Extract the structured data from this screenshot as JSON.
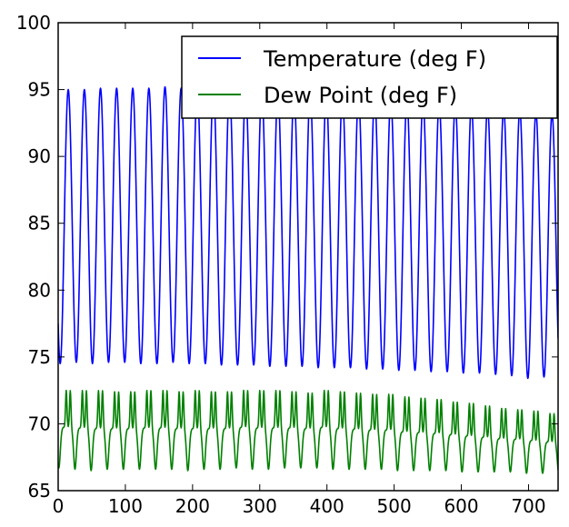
{
  "chart_data": {
    "type": "line",
    "title": "",
    "xlabel": "",
    "ylabel": "",
    "xlim": [
      0,
      744
    ],
    "ylim": [
      65,
      100
    ],
    "xticks": [
      0,
      100,
      200,
      300,
      400,
      500,
      600,
      700
    ],
    "yticks": [
      65,
      70,
      75,
      80,
      85,
      90,
      95,
      100
    ],
    "grid": false,
    "legend_position": "top-right",
    "period_hours": 24,
    "series": [
      {
        "name": "Temperature (deg F)",
        "color": "#0000ff",
        "daily_peaks": [
          95.0,
          95.0,
          95.1,
          95.1,
          95.1,
          95.1,
          95.2,
          95.1,
          95.0,
          95.0,
          95.0,
          94.9,
          94.9,
          94.8,
          94.7,
          94.7,
          94.6,
          94.5,
          94.5,
          94.4,
          94.3,
          94.2,
          94.1,
          94.0,
          93.9,
          93.8,
          93.7,
          93.6,
          93.5,
          93.3,
          93.2
        ],
        "daily_lows": [
          74.5,
          74.6,
          74.5,
          74.6,
          74.6,
          74.5,
          74.5,
          74.6,
          74.5,
          74.5,
          74.4,
          74.4,
          74.4,
          74.3,
          74.3,
          74.3,
          74.2,
          74.2,
          74.2,
          74.1,
          74.1,
          74.0,
          74.0,
          73.9,
          73.9,
          73.8,
          73.8,
          73.7,
          73.6,
          73.4,
          73.5
        ]
      },
      {
        "name": "Dew Point (deg F)",
        "color": "#008000",
        "daily_peaks": [
          72.8,
          72.8,
          72.8,
          72.7,
          72.7,
          72.8,
          72.8,
          72.7,
          72.8,
          72.7,
          72.7,
          72.8,
          72.8,
          72.8,
          72.7,
          72.6,
          72.8,
          72.7,
          72.6,
          72.5,
          72.5,
          72.3,
          72.2,
          72.1,
          71.9,
          71.8,
          71.6,
          71.4,
          71.3,
          71.2,
          71.0
        ],
        "daily_lows": [
          66.7,
          66.6,
          66.5,
          66.6,
          66.6,
          66.6,
          66.6,
          66.6,
          66.5,
          66.6,
          66.6,
          66.7,
          66.6,
          66.6,
          66.7,
          66.7,
          66.7,
          66.6,
          66.6,
          66.6,
          66.6,
          66.5,
          66.5,
          66.5,
          66.5,
          66.4,
          66.4,
          66.4,
          66.4,
          66.3,
          66.3
        ]
      }
    ]
  }
}
